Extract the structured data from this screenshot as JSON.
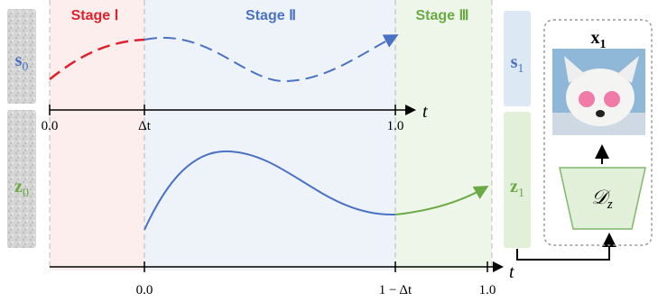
{
  "stages": [
    "Stage Ⅰ",
    "Stage Ⅱ",
    "Stage Ⅲ"
  ],
  "inputs": [
    {
      "symbol": "s",
      "sub": "0"
    },
    {
      "symbol": "z",
      "sub": "0"
    }
  ],
  "outputs": [
    {
      "symbol": "s",
      "sub": "1"
    },
    {
      "symbol": "z",
      "sub": "1"
    }
  ],
  "decoder": {
    "output": {
      "symbol": "x",
      "sub": "1"
    },
    "symbol": "𝒟",
    "sub": "z"
  },
  "top_axis": {
    "ticks": [
      "0.0",
      "Δt",
      "1.0"
    ],
    "label": "t"
  },
  "bottom_axis": {
    "ticks": [
      "0.0",
      "1 − Δt",
      "1.0"
    ],
    "label": "t"
  }
}
